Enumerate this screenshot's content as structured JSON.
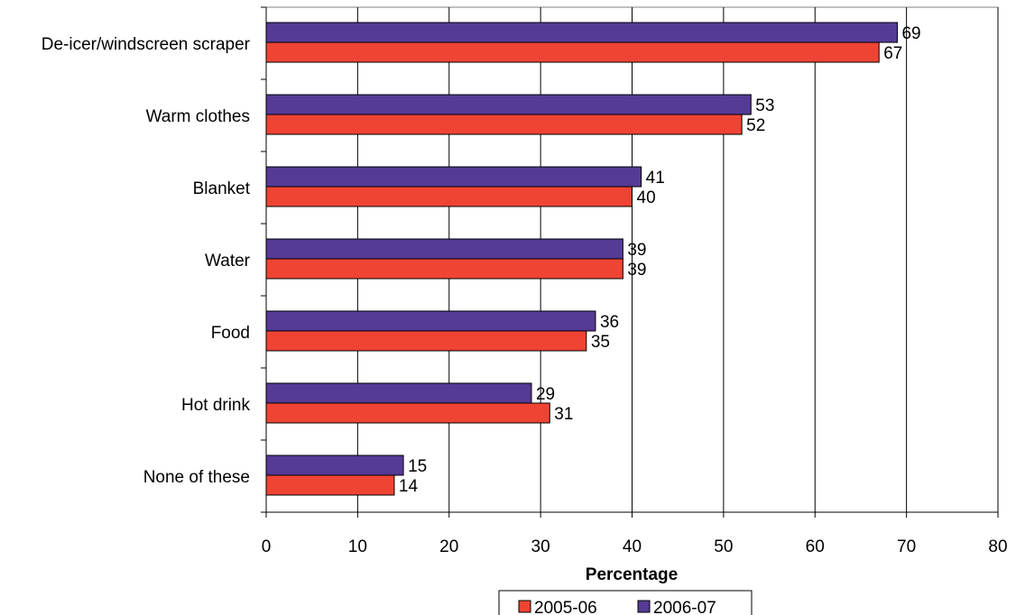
{
  "chart_data": {
    "type": "bar",
    "orientation": "horizontal",
    "categories": [
      "De-icer/windscreen scraper",
      "Warm clothes",
      "Blanket",
      "Water",
      "Food",
      "Hot drink",
      "None of these"
    ],
    "series": [
      {
        "name": "2006-07",
        "color": "#553a96",
        "values": [
          69,
          53,
          41,
          39,
          36,
          29,
          15
        ]
      },
      {
        "name": "2005-06",
        "color": "#ef4433",
        "values": [
          67,
          52,
          40,
          39,
          35,
          31,
          14
        ]
      }
    ],
    "xlabel": "Percentage",
    "xlim": [
      0,
      80
    ],
    "xticks": [
      0,
      10,
      20,
      30,
      40,
      50,
      60,
      70,
      80
    ],
    "grid": "vertical",
    "legend": {
      "position": "bottom",
      "order": [
        "2005-06",
        "2006-07"
      ]
    }
  }
}
